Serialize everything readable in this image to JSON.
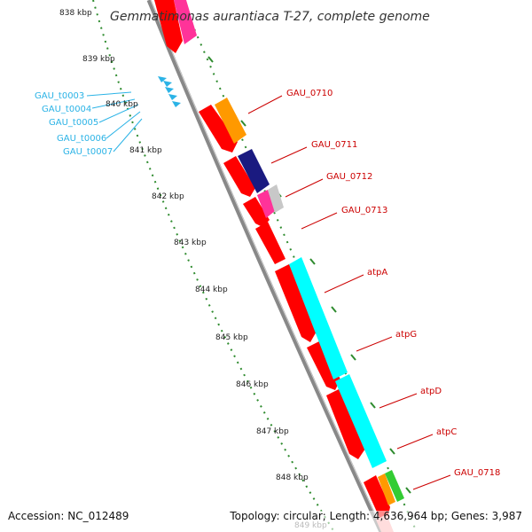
{
  "title": "Gemmatimonas aurantiaca T-27, complete genome",
  "ticks": [
    "838 kbp",
    "839 kbp",
    "840 kbp",
    "841 kbp",
    "842 kbp",
    "843 kbp",
    "844 kbp",
    "845 kbp",
    "846 kbp",
    "847 kbp",
    "848 kbp",
    "849 kbp"
  ],
  "gene_labels": [
    "GAU_0710",
    "GAU_0711",
    "GAU_0712",
    "GAU_0713",
    "atpA",
    "atpG",
    "atpD",
    "atpC",
    "GAU_0718"
  ],
  "trna_labels": [
    "GAU_t0003",
    "GAU_t0004",
    "GAU_t0005",
    "GAU_t0006",
    "GAU_t0007"
  ],
  "footer": {
    "accession": "Accession: NC_012489",
    "topology": "Topology: circular; Length: 4,636,964 bp; Genes: 3,987"
  },
  "colors": {
    "cds": "#ff0000",
    "gene": "#ff9900",
    "navy": "#1a1a80",
    "magenta": "#ff3399",
    "atp": "#00ffff",
    "green": "#33cc33",
    "trna": "#2bb3e6",
    "backbone": "#888888",
    "tick": "#2e8b2e"
  }
}
